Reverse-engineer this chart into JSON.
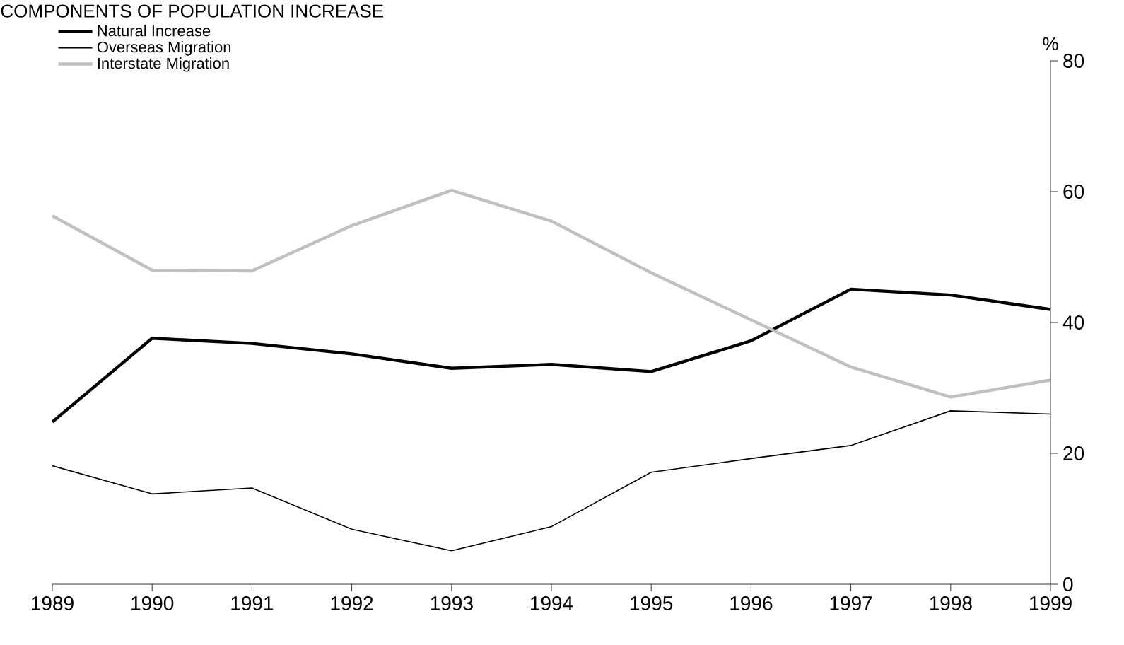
{
  "chart_data": {
    "type": "line",
    "title": "COMPONENTS OF POPULATION INCREASE",
    "ylabel": "%",
    "x": [
      1989,
      1990,
      1991,
      1992,
      1993,
      1994,
      1995,
      1996,
      1997,
      1998,
      1999
    ],
    "xlim": [
      1989,
      1999
    ],
    "xticks": [
      1989,
      1990,
      1991,
      1992,
      1993,
      1994,
      1995,
      1996,
      1997,
      1998,
      1999
    ],
    "ylim": [
      0,
      80
    ],
    "yticks": [
      0,
      20,
      40,
      60,
      80
    ],
    "grid": false,
    "legend": "top left",
    "series": [
      {
        "name": "Natural Increase",
        "color": "#000000",
        "values": [
          24.8,
          37.6,
          36.8,
          35.2,
          33.0,
          33.6,
          32.5,
          37.2,
          45.1,
          44.2,
          42.0
        ]
      },
      {
        "name": "Overseas Migration",
        "color": "#000000",
        "values": [
          18.1,
          13.8,
          14.7,
          8.4,
          5.1,
          8.8,
          17.1,
          19.2,
          21.2,
          26.5,
          26.0
        ]
      },
      {
        "name": "Interstate Migration",
        "color": "#c0c0c0",
        "values": [
          56.3,
          48.0,
          47.9,
          54.8,
          60.2,
          55.5,
          47.6,
          40.4,
          33.2,
          28.6,
          31.2
        ]
      }
    ]
  }
}
